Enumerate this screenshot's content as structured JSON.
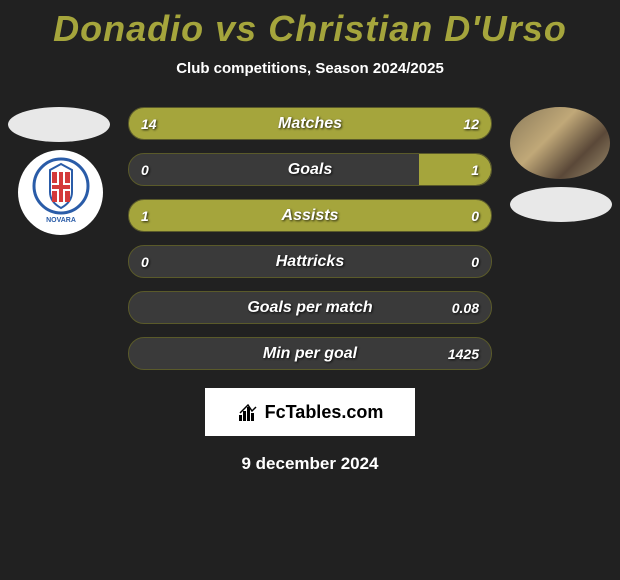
{
  "title": "Donadio vs Christian D'Urso",
  "subtitle": "Club competitions, Season 2024/2025",
  "bars": [
    {
      "label": "Matches",
      "left_val": "14",
      "right_val": "12",
      "left_pct": 54,
      "right_pct": 46,
      "full": true
    },
    {
      "label": "Goals",
      "left_val": "0",
      "right_val": "1",
      "left_pct": 0,
      "right_pct": 20,
      "full": false
    },
    {
      "label": "Assists",
      "left_val": "1",
      "right_val": "0",
      "left_pct": 100,
      "right_pct": 0,
      "full": true
    },
    {
      "label": "Hattricks",
      "left_val": "0",
      "right_val": "0",
      "left_pct": 0,
      "right_pct": 0,
      "full": false
    },
    {
      "label": "Goals per match",
      "left_val": "",
      "right_val": "0.08",
      "left_pct": 0,
      "right_pct": 0,
      "full": false
    },
    {
      "label": "Min per goal",
      "left_val": "",
      "right_val": "1425",
      "left_pct": 0,
      "right_pct": 0,
      "full": false
    }
  ],
  "colors": {
    "background": "#212121",
    "accent": "#a5a53c",
    "bar_empty": "#3a3a3a",
    "bar_border": "#5a5a2a",
    "text": "#ffffff"
  },
  "footer": {
    "brand": "FcTables.com",
    "date": "9 december 2024"
  }
}
